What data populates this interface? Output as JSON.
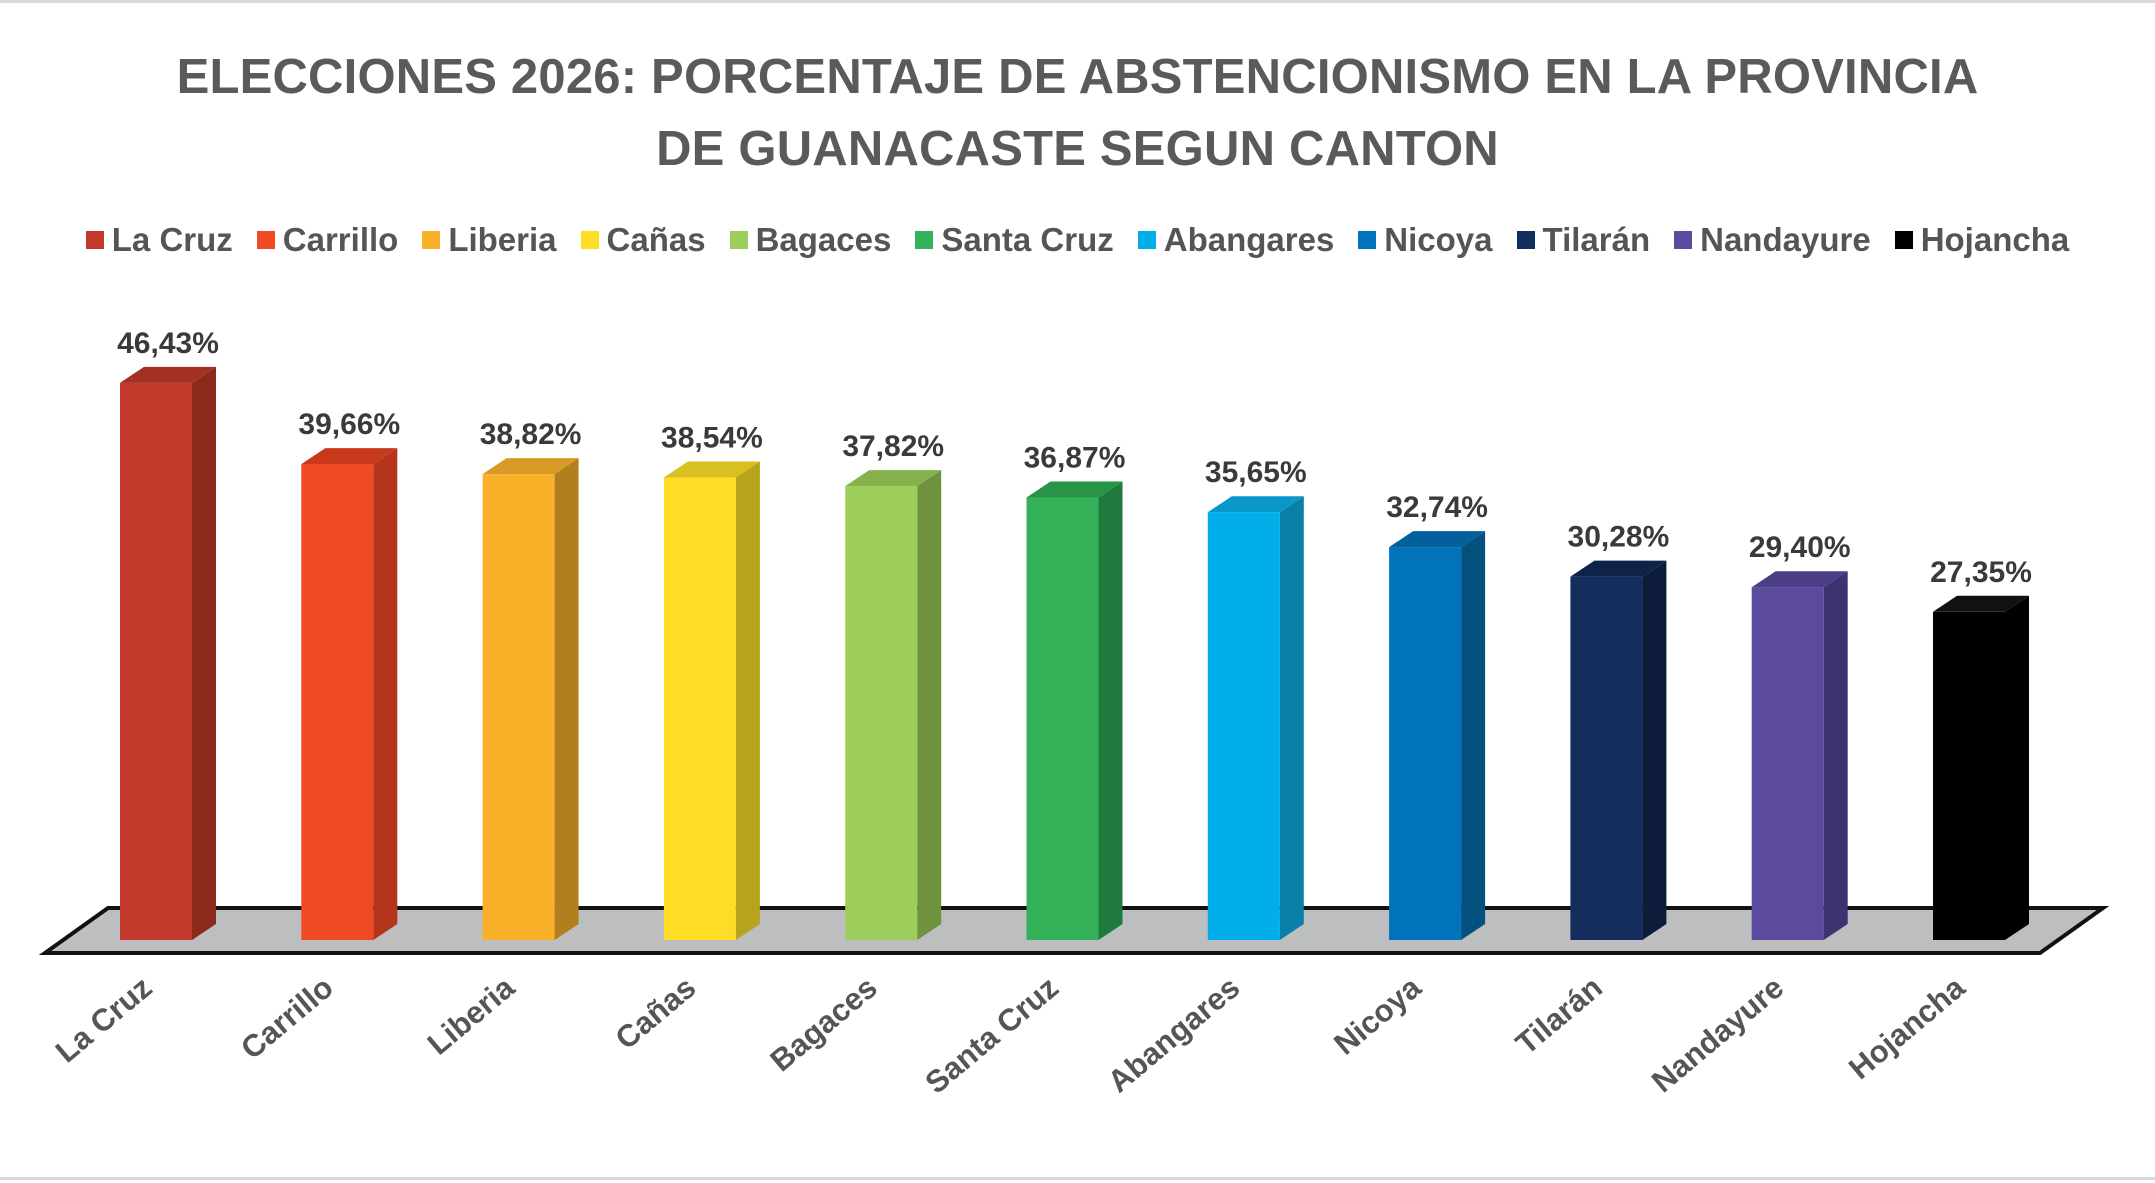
{
  "chart_data": {
    "type": "bar",
    "title_lines": [
      "ELECCIONES 2026: PORCENTAJE DE ABSTENCIONISMO EN LA PROVINCIA",
      "DE GUANACASTE SEGUN CANTON"
    ],
    "categories": [
      "La Cruz",
      "Carrillo",
      "Liberia",
      "Cañas",
      "Bagaces",
      "Santa Cruz",
      "Abangares",
      "Nicoya",
      "Tilarán",
      "Nandayure",
      "Hojancha"
    ],
    "values": [
      46.43,
      39.66,
      38.82,
      38.54,
      37.82,
      36.87,
      35.65,
      32.74,
      30.28,
      29.4,
      27.35
    ],
    "data_labels": [
      "46,43%",
      "39,66%",
      "38,82%",
      "38,54%",
      "37,82%",
      "36,87%",
      "35,65%",
      "32,74%",
      "30,28%",
      "29,40%",
      "27,35%"
    ],
    "colors": [
      "#c0392b",
      "#ef4a24",
      "#f9b12a",
      "#ffdd27",
      "#9dcd5a",
      "#34b159",
      "#00aeea",
      "#0073bb",
      "#152d5c",
      "#5b4a9e",
      "#000000"
    ],
    "side_colors": [
      "#8b2a1a",
      "#b5341c",
      "#b27f1e",
      "#b8a31c",
      "#6f923f",
      "#1f7a3d",
      "#0a7fa8",
      "#04517f",
      "#0d1c3a",
      "#3e3270",
      "#000000"
    ],
    "top_colors": [
      "#a23122",
      "#c8391b",
      "#d89a24",
      "#d7c01f",
      "#86b24d",
      "#279448",
      "#0897c8",
      "#045f9d",
      "#0f2247",
      "#4b3d86",
      "#111111"
    ],
    "legend_position": "top",
    "xlabel": "",
    "ylabel": "",
    "ylim": [
      0,
      50
    ],
    "grid": false,
    "floor_color": "#bcbec0"
  }
}
